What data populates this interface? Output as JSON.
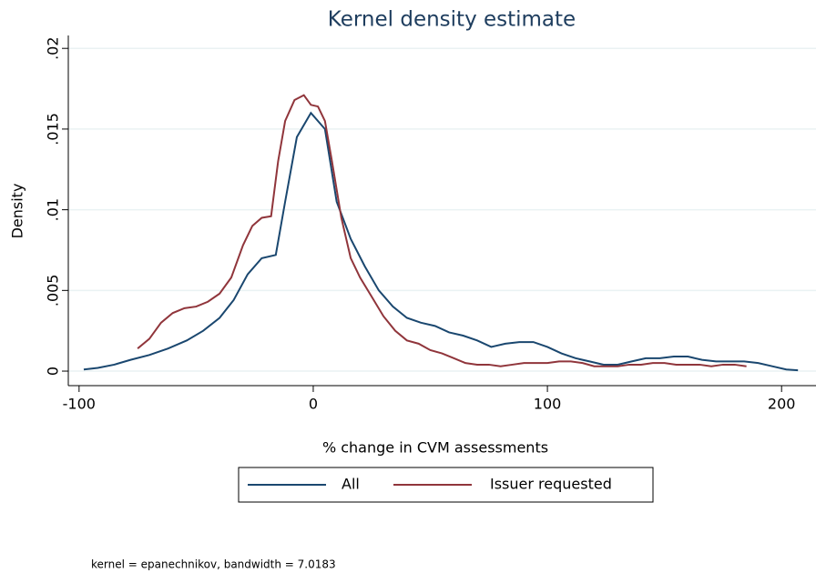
{
  "chart_data": {
    "type": "line",
    "title": "Kernel density estimate",
    "x_label": "% change in CVM assessments",
    "y_label": "Density",
    "note": "kernel = epanechnikov, bandwidth = 7.0183",
    "xlim": [
      -104.6,
      214.7
    ],
    "xticks": [
      -100,
      0,
      100,
      200
    ],
    "ylim": [
      -0.0009,
      0.0208
    ],
    "yticks": [
      {
        "value": 0,
        "label": "0"
      },
      {
        "value": 0.005,
        "label": ".005"
      },
      {
        "value": 0.01,
        "label": ".01"
      },
      {
        "value": 0.015,
        "label": ".015"
      },
      {
        "value": 0.02,
        "label": ".02"
      }
    ],
    "grid": true,
    "legend": "bottom",
    "series": [
      {
        "name": "All",
        "color": "#1a476f",
        "x": [
          -98,
          -92,
          -85,
          -78,
          -70,
          -62,
          -54,
          -47,
          -40,
          -34,
          -28,
          -22,
          -16,
          -12,
          -7,
          -1,
          5,
          10,
          16,
          22,
          28,
          34,
          40,
          46,
          52,
          58,
          64,
          70,
          76,
          82,
          88,
          94,
          100,
          106,
          112,
          118,
          124,
          130,
          136,
          142,
          148,
          154,
          160,
          166,
          172,
          178,
          184,
          190,
          196,
          202,
          207
        ],
        "values": [
          0.0001,
          0.0002,
          0.0004,
          0.0007,
          0.001,
          0.0014,
          0.0019,
          0.0025,
          0.0033,
          0.0044,
          0.006,
          0.007,
          0.0072,
          0.0105,
          0.0145,
          0.016,
          0.015,
          0.0105,
          0.0082,
          0.0065,
          0.005,
          0.004,
          0.0033,
          0.003,
          0.0028,
          0.0024,
          0.0022,
          0.0019,
          0.0015,
          0.0017,
          0.0018,
          0.0018,
          0.0015,
          0.0011,
          0.0008,
          0.0006,
          0.0004,
          0.0004,
          0.0006,
          0.0008,
          0.0008,
          0.0009,
          0.0009,
          0.0007,
          0.0006,
          0.0006,
          0.0006,
          0.0005,
          0.0003,
          0.0001,
          5e-05
        ]
      },
      {
        "name": "Issuer requested",
        "color": "#90353b",
        "x": [
          -75,
          -70,
          -65,
          -60,
          -55,
          -50,
          -45,
          -40,
          -35,
          -30,
          -26,
          -22,
          -18,
          -15,
          -12,
          -8,
          -4,
          -1,
          2,
          5,
          8,
          12,
          16,
          20,
          25,
          30,
          35,
          40,
          45,
          50,
          55,
          60,
          65,
          70,
          75,
          80,
          85,
          90,
          95,
          100,
          105,
          110,
          115,
          120,
          125,
          130,
          135,
          140,
          145,
          150,
          155,
          160,
          165,
          170,
          175,
          180,
          185
        ],
        "values": [
          0.0014,
          0.002,
          0.003,
          0.0036,
          0.0039,
          0.004,
          0.0043,
          0.0048,
          0.0058,
          0.0078,
          0.009,
          0.0095,
          0.0096,
          0.013,
          0.0155,
          0.0168,
          0.0171,
          0.0165,
          0.0164,
          0.0155,
          0.013,
          0.0095,
          0.007,
          0.0058,
          0.0046,
          0.0034,
          0.0025,
          0.0019,
          0.0017,
          0.0013,
          0.0011,
          0.0008,
          0.0005,
          0.0004,
          0.0004,
          0.0003,
          0.0004,
          0.0005,
          0.0005,
          0.0005,
          0.0006,
          0.0006,
          0.0005,
          0.0003,
          0.0003,
          0.0003,
          0.0004,
          0.0004,
          0.0005,
          0.0005,
          0.0004,
          0.0004,
          0.0004,
          0.0003,
          0.0004,
          0.0004,
          0.0003
        ]
      }
    ]
  }
}
